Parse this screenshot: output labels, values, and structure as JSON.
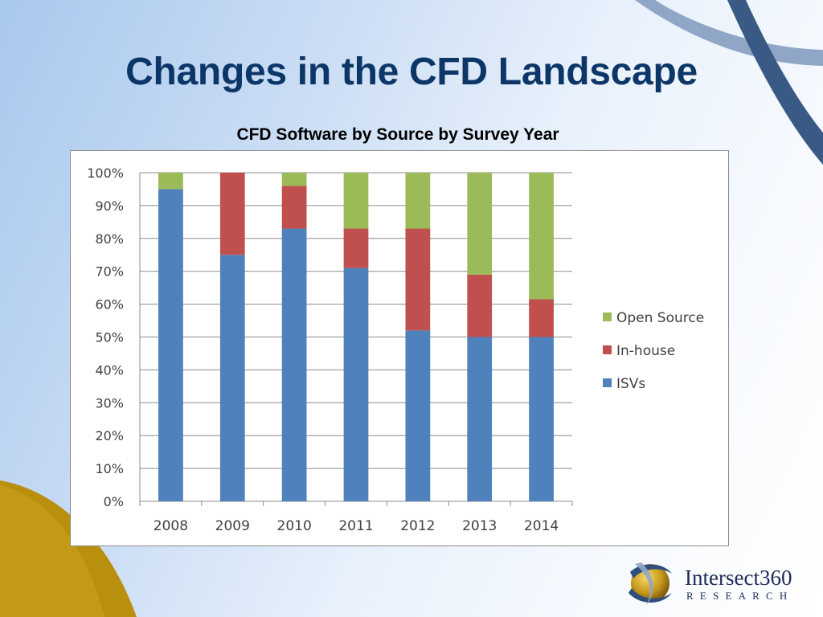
{
  "slide": {
    "title": "Changes in the CFD Landscape"
  },
  "colors": {
    "title": "#0d3668",
    "isvs": "#4f81bd",
    "in_house": "#c0504d",
    "open_source": "#9bbb59",
    "decor_arc_dark": "#3a5a86",
    "decor_arc_light": "#8fa6c6",
    "decor_gold": "#b8900e"
  },
  "logo": {
    "name": "Intersect360",
    "sub": "RESEARCH",
    "icon": "globe-swirl-icon"
  },
  "chart_data": {
    "type": "bar",
    "stacked": true,
    "title": "CFD Software by Source by Survey Year",
    "xlabel": "",
    "ylabel": "",
    "categories": [
      "2008",
      "2009",
      "2010",
      "2011",
      "2012",
      "2013",
      "2014"
    ],
    "series": [
      {
        "name": "ISVs",
        "values": [
          95,
          75,
          83,
          71,
          52,
          50,
          50
        ]
      },
      {
        "name": "In-house",
        "values": [
          0,
          25,
          13,
          12,
          31,
          19,
          11.5
        ]
      },
      {
        "name": "Open Source",
        "values": [
          5,
          0,
          4,
          17,
          17,
          31,
          38.5
        ]
      }
    ],
    "ylim": [
      0,
      100
    ],
    "yticks": [
      "0%",
      "10%",
      "20%",
      "30%",
      "40%",
      "50%",
      "60%",
      "70%",
      "80%",
      "90%",
      "100%"
    ],
    "legend": {
      "placement": "right",
      "order": [
        "Open Source",
        "In-house",
        "ISVs"
      ]
    },
    "grid": true
  }
}
